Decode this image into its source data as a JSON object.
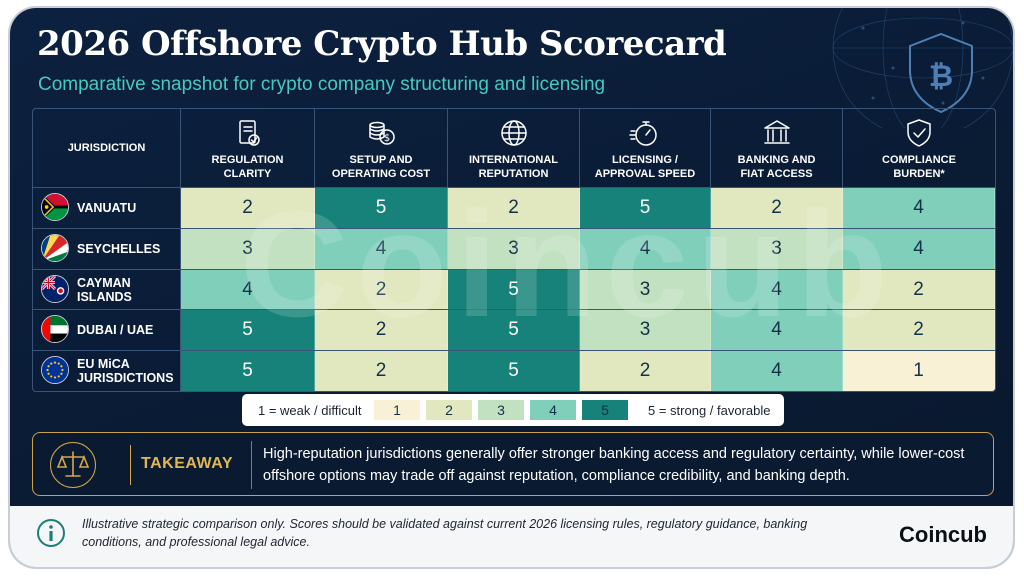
{
  "title": "2026 Offshore Crypto Hub Scorecard",
  "subtitle": "Comparative snapshot for crypto company structuring and licensing",
  "watermark": "Coincub",
  "chart_data": {
    "type": "heatmap",
    "title": "2026 Offshore Crypto Hub Scorecard",
    "subtitle": "Comparative snapshot for crypto company structuring and licensing",
    "row_header": "JURISDICTION",
    "columns": [
      {
        "label": "REGULATION\nCLARITY",
        "icon": "document-check-icon"
      },
      {
        "label": "SETUP AND\nOPERATING COST",
        "icon": "coin-stack-icon"
      },
      {
        "label": "INTERNATIONAL\nREPUTATION",
        "icon": "globe-icon"
      },
      {
        "label": "LICENSING /\nAPPROVAL SPEED",
        "icon": "stopwatch-icon"
      },
      {
        "label": "BANKING AND\nFIAT ACCESS",
        "icon": "bank-icon"
      },
      {
        "label": "COMPLIANCE\nBURDEN*",
        "icon": "shield-check-icon"
      }
    ],
    "rows": [
      {
        "name": "VANUATU",
        "flag": "vanuatu-flag-icon",
        "values": [
          2,
          5,
          2,
          5,
          2,
          4
        ]
      },
      {
        "name": "SEYCHELLES",
        "flag": "seychelles-flag-icon",
        "values": [
          3,
          4,
          3,
          4,
          3,
          4
        ]
      },
      {
        "name": "CAYMAN ISLANDS",
        "flag": "cayman-flag-icon",
        "values": [
          4,
          2,
          5,
          3,
          4,
          2
        ]
      },
      {
        "name": "DUBAI / UAE",
        "flag": "uae-flag-icon",
        "values": [
          5,
          2,
          5,
          3,
          4,
          2
        ]
      },
      {
        "name": "EU MiCA\nJURISDICTIONS",
        "flag": "eu-flag-icon",
        "values": [
          5,
          2,
          5,
          2,
          4,
          1
        ]
      }
    ],
    "scale": {
      "min": 1,
      "max": 5
    },
    "colors": {
      "1": "#f8f1d6",
      "2": "#e1e8bf",
      "3": "#c2e1c0",
      "4": "#7fcfbb",
      "5": "#168279"
    }
  },
  "legend": {
    "low_label": "1 = weak / difficult",
    "high_label": "5 = strong / favorable",
    "levels": [
      "1",
      "2",
      "3",
      "4",
      "5"
    ]
  },
  "takeaway": {
    "label": "TAKEAWAY",
    "text": "High-reputation jurisdictions generally offer stronger banking access and regulatory certainty, while lower-cost offshore options may trade off against reputation, compliance credibility, and banking depth."
  },
  "footer": {
    "note": "Illustrative strategic comparison only. Scores should be validated against current 2026 licensing rules, regulatory guidance, banking conditions, and professional legal advice.",
    "brand": "Coincub"
  }
}
